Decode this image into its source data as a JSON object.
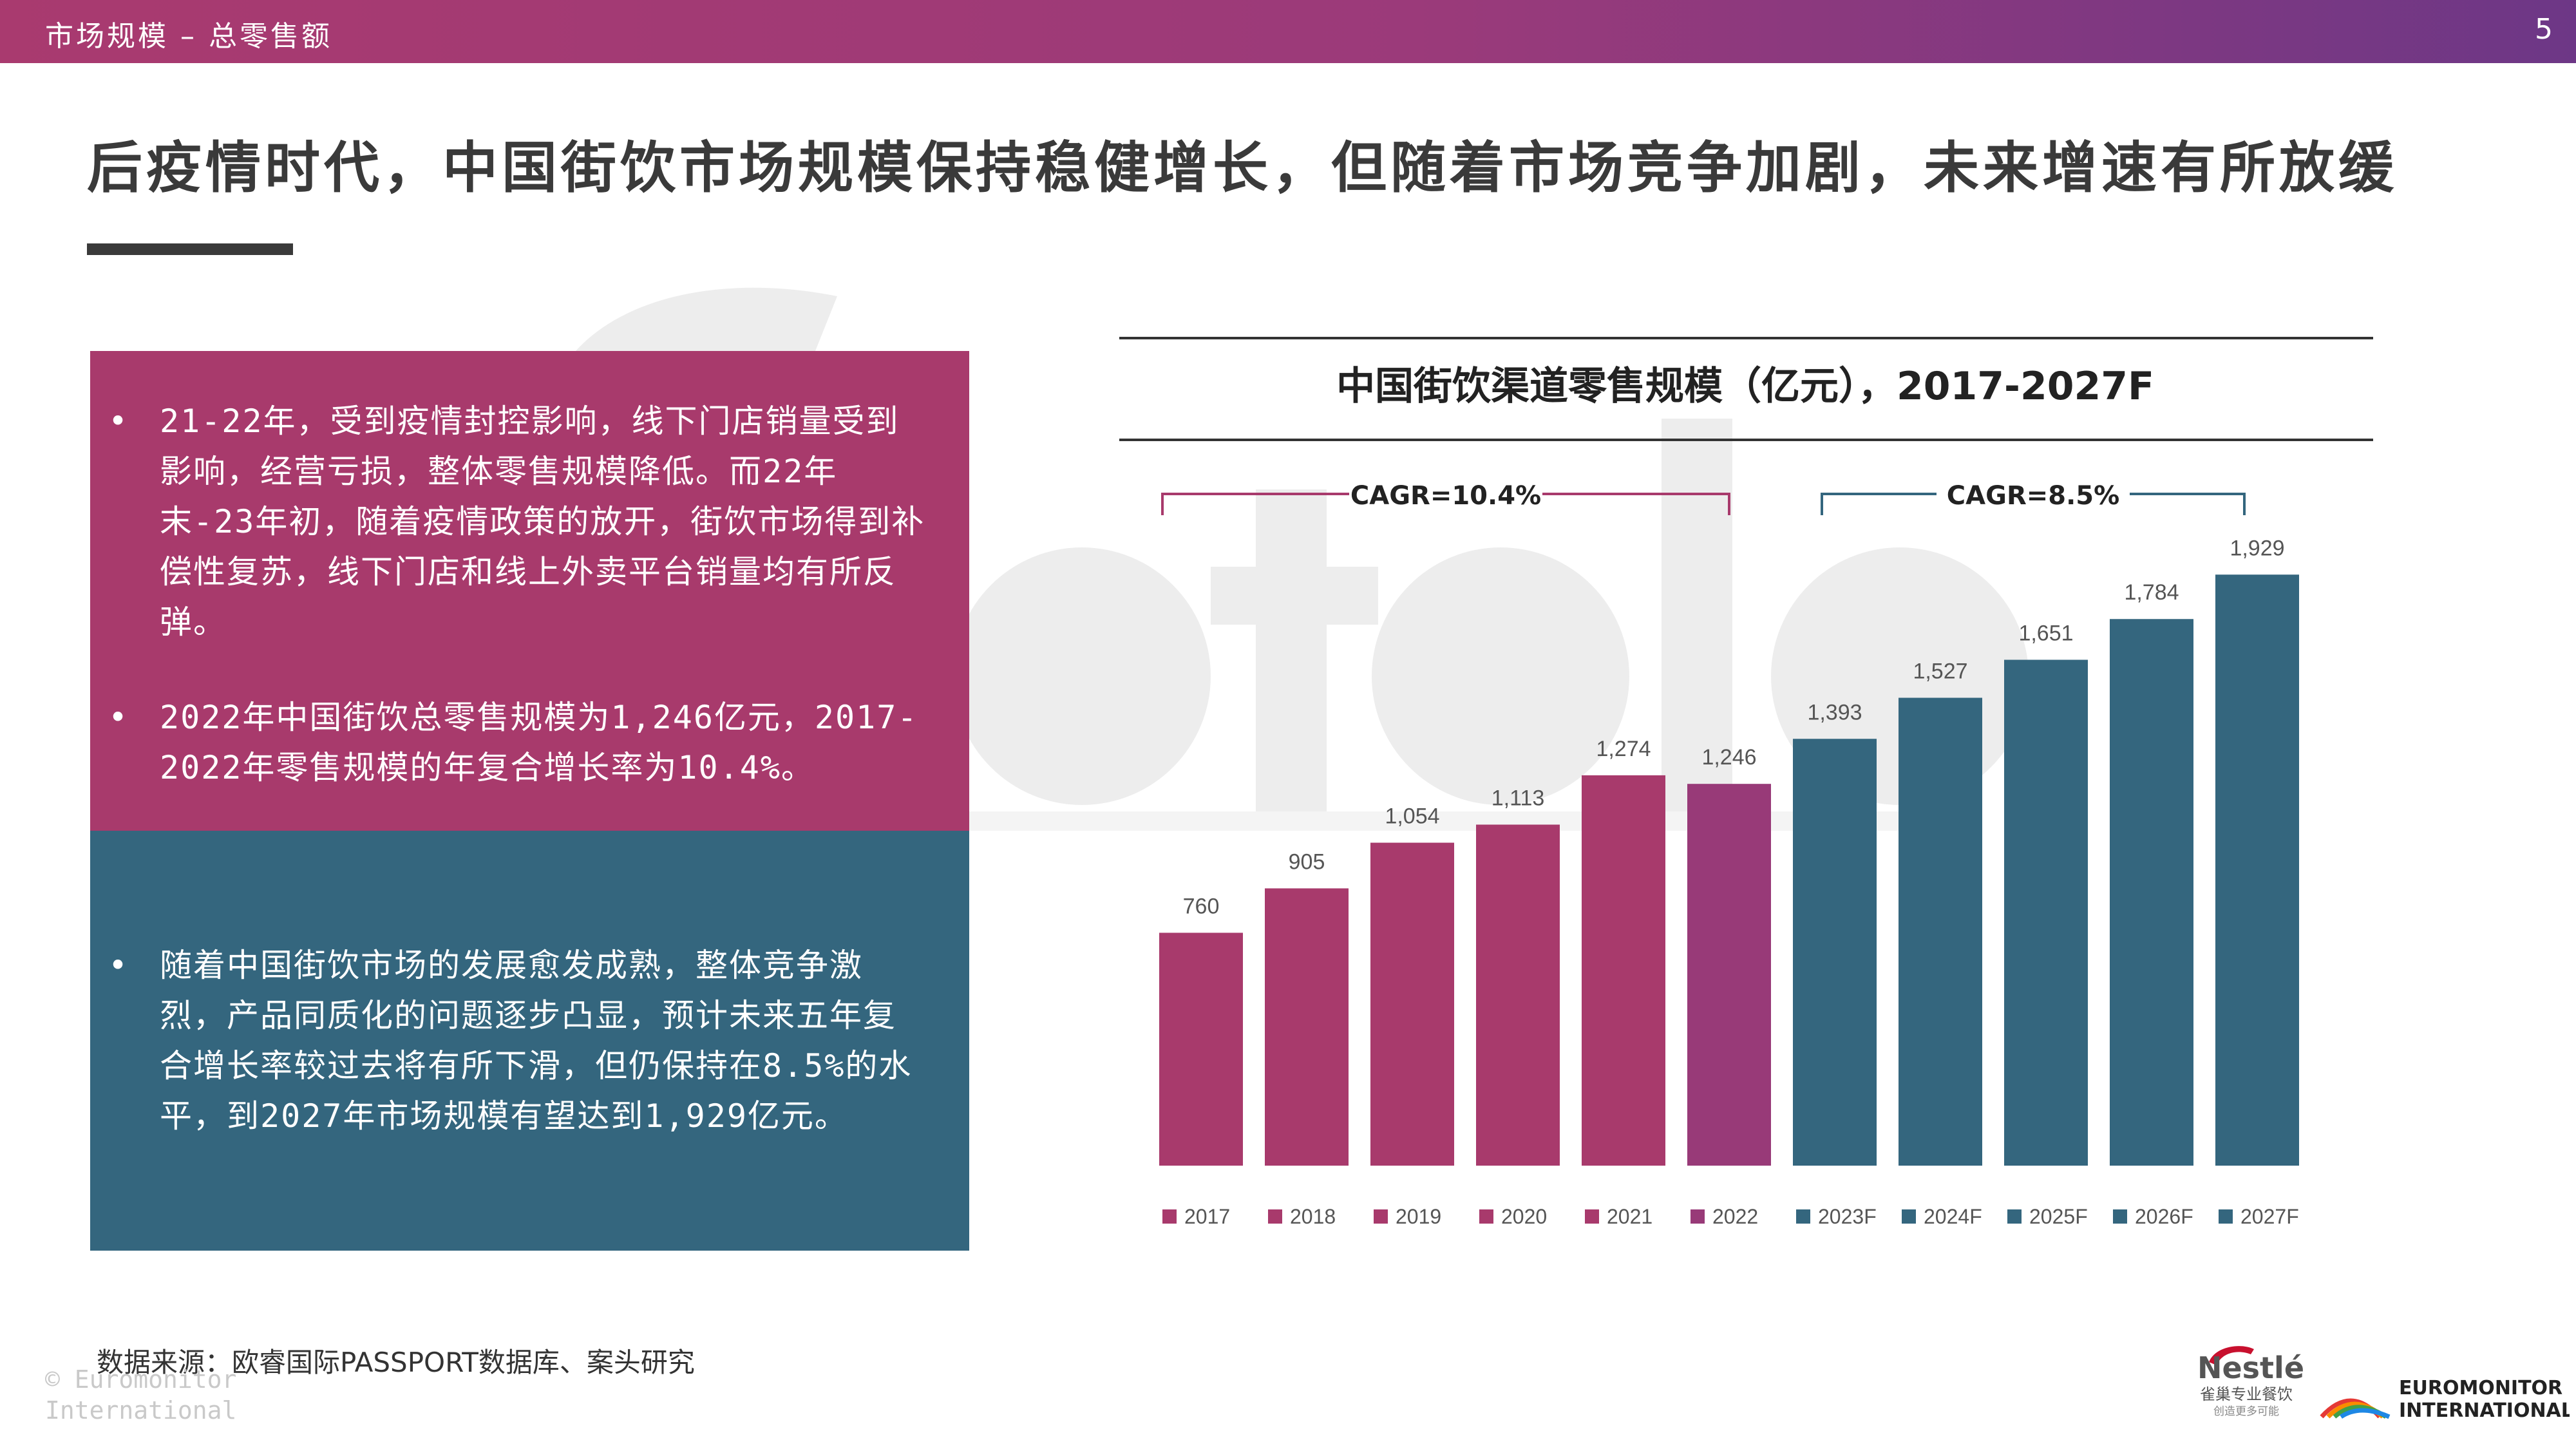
{
  "header": {
    "breadcrumb": "市场规模 – 总零售额",
    "page_number": "5"
  },
  "headline": "后疫情时代，中国街饮市场规模保持稳健增长，但随着市场竞争加剧，未来增速有所放缓",
  "left_panel": {
    "top_bullets": [
      "21-22年，受到疫情封控影响，线下门店销量受到影响，经营亏损，整体零售规模降低。而22年末-23年初，随着疫情政策的放开，街饮市场得到补偿性复苏，线下门店和线上外卖平台销量均有所反弹。",
      "2022年中国街饮总零售规模为1,246亿元，2017-2022年零售规模的年复合增长率为10.4%。"
    ],
    "bottom_bullets": [
      "随着中国街饮市场的发展愈发成熟，整体竞争激烈，产品同质化的问题逐步凸显，预计未来五年复合增长率较过去将有所下滑，但仍保持在8.5%的水平，到2027年市场规模有望达到1,929亿元。"
    ],
    "bullet_char": "•"
  },
  "chart_data": {
    "type": "bar",
    "title": "中国街饮渠道零售规模（亿元），2017-2027F",
    "categories": [
      "2017",
      "2018",
      "2019",
      "2020",
      "2021",
      "2022",
      "2023F",
      "2024F",
      "2025F",
      "2026F",
      "2027F"
    ],
    "values": [
      760,
      905,
      1054,
      1113,
      1274,
      1246,
      1393,
      1527,
      1651,
      1784,
      1929
    ],
    "data_labels": [
      "760",
      "905",
      "1,054",
      "1,113",
      "1,274",
      "1,246",
      "1,393",
      "1,527",
      "1,651",
      "1,784",
      "1,929"
    ],
    "colors": [
      "#a83a6c",
      "#a83a6c",
      "#a83a6c",
      "#a83a6c",
      "#a83a6c",
      "#983a78",
      "#34667e",
      "#34667e",
      "#34667e",
      "#34667e",
      "#34667e"
    ],
    "ylim": [
      0,
      2100
    ],
    "grid": false,
    "legend": "bottom",
    "annotations": [
      {
        "text": "CAGR=10.4%",
        "from": "2017",
        "to": "2022",
        "color": "#a83a6c"
      },
      {
        "text": "CAGR=8.5%",
        "from": "2023F",
        "to": "2027F",
        "color": "#34667e"
      }
    ]
  },
  "footer": {
    "source": "数据来源：欧睿国际PASSPORT数据库、案头研究",
    "copyright_line1": "© Euromonitor",
    "copyright_line2": "International",
    "euromonitor_line1": "EUROMONITOR",
    "euromonitor_line2": "INTERNATIONAL",
    "nestle_brand": "Nestlé",
    "nestle_sub": "雀巢专业餐饮",
    "nestle_tagline": "创造更多可能"
  }
}
